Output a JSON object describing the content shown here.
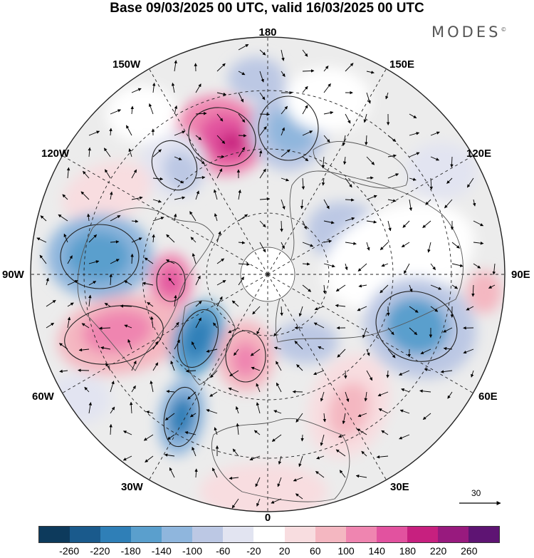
{
  "title": "Base 09/03/2025 00 UTC, valid 16/03/2025 00 UTC",
  "brand": "MODES",
  "brand_mark": "©",
  "longitude_labels": {
    "n180": "180",
    "w150": "150W",
    "e150": "150E",
    "w120": "120W",
    "e120": "120E",
    "w90": "90W",
    "e90": "90E",
    "w60": "60W",
    "e60": "60E",
    "w30": "30W",
    "e30": "30E",
    "s0": "0"
  },
  "reference_vector": {
    "value": "30"
  },
  "colorbar": {
    "colors": [
      "#0d3a5c",
      "#1a5a8c",
      "#2f7fb7",
      "#5a9fcd",
      "#8fb6dd",
      "#bcc8e4",
      "#e2e4f1",
      "#ffffff",
      "#f8dde0",
      "#f4b7c1",
      "#ef85b0",
      "#e2529f",
      "#c7207f",
      "#981a7e",
      "#5e1473"
    ],
    "tick_labels": [
      "-260",
      "-220",
      "-180",
      "-140",
      "-100",
      "-60",
      "-20",
      "20",
      "60",
      "100",
      "140",
      "180",
      "220",
      "260"
    ]
  },
  "colors": {
    "negative": "#2f7fb7",
    "positive": "#e2529f"
  },
  "map_features": {
    "projection": "north polar stereographic",
    "graticule": "dashed",
    "coastlines": "shown",
    "wind_vectors": "shown",
    "shaded_anomaly_centers": [
      {
        "sign": "positive",
        "near": "Bering Sea / Aleutians",
        "peak_band": "220"
      },
      {
        "sign": "negative",
        "near": "Kamchatka",
        "peak_band": "-140"
      },
      {
        "sign": "negative",
        "near": "Hudson Bay",
        "peak_band": "-140"
      },
      {
        "sign": "positive",
        "near": "Baffin Bay",
        "peak_band": "180"
      },
      {
        "sign": "positive",
        "near": "eastern United States",
        "peak_band": "140"
      },
      {
        "sign": "negative",
        "near": "Greenland",
        "peak_band": "-180"
      },
      {
        "sign": "negative",
        "near": "central Atlantic",
        "peak_band": "-180"
      },
      {
        "sign": "positive",
        "near": "Norwegian Sea",
        "peak_band": "140"
      },
      {
        "sign": "negative",
        "near": "central Siberia",
        "peak_band": "-140"
      },
      {
        "sign": "positive",
        "near": "eastern Europe",
        "peak_band": "100"
      }
    ]
  }
}
